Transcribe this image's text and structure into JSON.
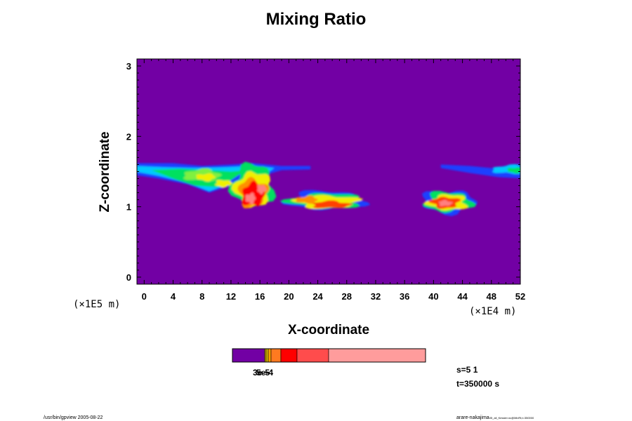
{
  "chart_data": {
    "type": "heatmap",
    "title": "Mixing Ratio",
    "xlabel": "X-coordinate",
    "ylabel": "Z-coordinate",
    "x_scale_note": "(×1E4 m)",
    "y_scale_note": "(×1E5 m)",
    "xlim": [
      -1,
      52
    ],
    "ylim": [
      -0.1,
      3.1
    ],
    "x_ticks": [
      0,
      4,
      8,
      12,
      16,
      20,
      24,
      28,
      32,
      36,
      40,
      44,
      48,
      52
    ],
    "y_ticks": [
      0,
      1,
      2,
      3
    ],
    "background_color": "#7200a4",
    "colorbar": {
      "colors": [
        "#7200a4",
        "#d8b000",
        "#ffa000",
        "#ff7a20",
        "#ff0000",
        "#ff4c4c",
        "#ff9c9c"
      ],
      "label_overlap": "3e-5",
      "label_second": "5e-4"
    },
    "features": [
      {
        "region": "cloud band left",
        "x_range": [
          -1,
          19
        ],
        "z_range": [
          1.3,
          1.62
        ]
      },
      {
        "region": "core",
        "x_center": 15,
        "z_center": 1.1,
        "max_level": "high"
      },
      {
        "region": "cloud middle",
        "x_range": [
          20,
          30
        ],
        "z_range": [
          0.95,
          1.2
        ]
      },
      {
        "region": "cloud right",
        "x_range": [
          39,
          45
        ],
        "z_range": [
          0.95,
          1.2
        ]
      },
      {
        "region": "upper right band",
        "x_range": [
          42,
          52
        ],
        "z_range": [
          1.4,
          1.6
        ]
      }
    ]
  },
  "info": {
    "line1": "s=5 1",
    "line2": "t=350000 s"
  },
  "footer": {
    "left": "/usr/bin/gpview 2005-08-22",
    "right_main": "arare-nakajima",
    "right_small": "05_all_Kessler.nc@MixRt,t=350000"
  },
  "colors": {
    "text": "#000000",
    "background": "#ffffff"
  }
}
